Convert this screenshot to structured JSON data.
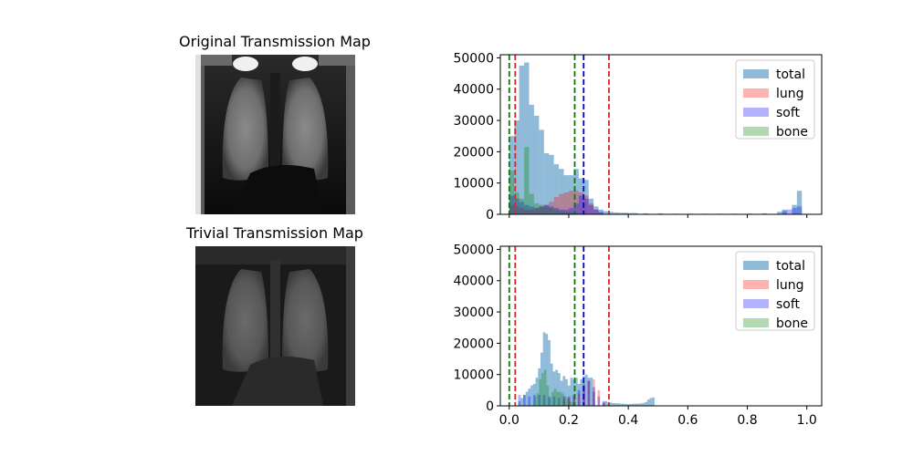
{
  "images": [
    {
      "title": "Original Transmission Map"
    },
    {
      "title": "Trivial Transmission Map"
    }
  ],
  "colors": {
    "total": "#1f77b4",
    "lung": "#ff0000",
    "soft": "#0000ff",
    "bone": "#008000",
    "vline_red": "#d62728",
    "vline_blue": "#0000cc",
    "vline_green": "#008000"
  },
  "chart_data": [
    {
      "type": "bar",
      "title": "",
      "xlabel": "",
      "ylabel": "",
      "xlim": [
        -0.03,
        1.05
      ],
      "ylim": [
        0,
        51000
      ],
      "yticks": [
        0,
        10000,
        20000,
        30000,
        40000,
        50000
      ],
      "xticks": [
        0.0,
        0.2,
        0.4,
        0.6,
        0.8,
        1.0
      ],
      "show_xtick_labels": false,
      "legend": {
        "position": "top-right",
        "entries": [
          "total",
          "lung",
          "soft",
          "bone"
        ]
      },
      "vlines": [
        {
          "x": 0.0,
          "color": "bone"
        },
        {
          "x": 0.02,
          "color": "lung"
        },
        {
          "x": 0.22,
          "color": "bone"
        },
        {
          "x": 0.25,
          "color": "soft"
        },
        {
          "x": 0.335,
          "color": "lung"
        }
      ],
      "bin_width": 0.01667,
      "series": [
        {
          "name": "total",
          "bins": [
            [
              0.0,
              25000
            ],
            [
              0.0167,
              30000
            ],
            [
              0.0333,
              47500
            ],
            [
              0.05,
              48500
            ],
            [
              0.0667,
              35000
            ],
            [
              0.0833,
              31500
            ],
            [
              0.1,
              27000
            ],
            [
              0.1167,
              19500
            ],
            [
              0.1333,
              19000
            ],
            [
              0.15,
              16000
            ],
            [
              0.1667,
              14500
            ],
            [
              0.1833,
              12500
            ],
            [
              0.2,
              12500
            ],
            [
              0.2167,
              14500
            ],
            [
              0.2333,
              11500
            ],
            [
              0.25,
              11000
            ],
            [
              0.2667,
              5000
            ],
            [
              0.2833,
              2500
            ],
            [
              0.3,
              1500
            ],
            [
              0.3167,
              1000
            ],
            [
              0.3333,
              800
            ],
            [
              0.35,
              600
            ],
            [
              0.3667,
              500
            ],
            [
              0.3833,
              500
            ],
            [
              0.4,
              400
            ],
            [
              0.4167,
              400
            ],
            [
              0.45,
              300
            ],
            [
              0.5,
              300
            ],
            [
              0.55,
              200
            ],
            [
              0.6,
              200
            ],
            [
              0.65,
              200
            ],
            [
              0.7,
              200
            ],
            [
              0.75,
              200
            ],
            [
              0.8,
              200
            ],
            [
              0.85,
              300
            ],
            [
              0.9,
              800
            ],
            [
              0.9167,
              1500
            ],
            [
              0.95,
              3000
            ],
            [
              0.9667,
              7500
            ]
          ]
        },
        {
          "name": "lung",
          "bins": [
            [
              0.0,
              3000
            ],
            [
              0.0167,
              2500
            ],
            [
              0.0333,
              2000
            ],
            [
              0.05,
              1500
            ],
            [
              0.0667,
              1500
            ],
            [
              0.0833,
              2000
            ],
            [
              0.1,
              2500
            ],
            [
              0.1167,
              3000
            ],
            [
              0.1333,
              4000
            ],
            [
              0.15,
              5500
            ],
            [
              0.1667,
              6500
            ],
            [
              0.1833,
              7000
            ],
            [
              0.2,
              7500
            ],
            [
              0.2167,
              7500
            ],
            [
              0.2333,
              7000
            ],
            [
              0.25,
              6000
            ],
            [
              0.2667,
              3500
            ],
            [
              0.2833,
              1500
            ],
            [
              0.3,
              500
            ]
          ]
        },
        {
          "name": "soft",
          "bins": [
            [
              0.0,
              6000
            ],
            [
              0.0167,
              5000
            ],
            [
              0.0333,
              4000
            ],
            [
              0.05,
              3000
            ],
            [
              0.0667,
              2500
            ],
            [
              0.0833,
              2000
            ],
            [
              0.1,
              2500
            ],
            [
              0.1167,
              3000
            ],
            [
              0.1333,
              2500
            ],
            [
              0.15,
              2000
            ],
            [
              0.1667,
              1500
            ],
            [
              0.1833,
              1500
            ],
            [
              0.2,
              2000
            ],
            [
              0.2167,
              3500
            ],
            [
              0.2333,
              6000
            ],
            [
              0.25,
              5000
            ],
            [
              0.2667,
              3000
            ],
            [
              0.2833,
              1500
            ],
            [
              0.3,
              800
            ],
            [
              0.9167,
              1000
            ],
            [
              0.9333,
              1500
            ],
            [
              0.95,
              2000
            ],
            [
              0.9667,
              2500
            ]
          ]
        },
        {
          "name": "bone",
          "bins": [
            [
              0.0,
              14000
            ],
            [
              0.0167,
              7000
            ],
            [
              0.0333,
              5000
            ],
            [
              0.05,
              21500
            ],
            [
              0.0667,
              6500
            ],
            [
              0.0833,
              3500
            ],
            [
              0.1,
              3000
            ],
            [
              0.1167,
              2500
            ],
            [
              0.1333,
              2000
            ],
            [
              0.15,
              1500
            ],
            [
              0.1667,
              1000
            ],
            [
              0.1833,
              800
            ],
            [
              0.2,
              700
            ],
            [
              0.2167,
              500
            ]
          ]
        }
      ]
    },
    {
      "type": "bar",
      "title": "",
      "xlabel": "",
      "ylabel": "",
      "xlim": [
        -0.03,
        1.05
      ],
      "ylim": [
        0,
        51000
      ],
      "yticks": [
        0,
        10000,
        20000,
        30000,
        40000,
        50000
      ],
      "xticks": [
        0.0,
        0.2,
        0.4,
        0.6,
        0.8,
        1.0
      ],
      "show_xtick_labels": true,
      "legend": {
        "position": "top-right",
        "entries": [
          "total",
          "lung",
          "soft",
          "bone"
        ]
      },
      "vlines": [
        {
          "x": 0.0,
          "color": "bone"
        },
        {
          "x": 0.02,
          "color": "lung"
        },
        {
          "x": 0.22,
          "color": "bone"
        },
        {
          "x": 0.25,
          "color": "soft"
        },
        {
          "x": 0.335,
          "color": "lung"
        }
      ],
      "bin_width": 0.0083,
      "series": [
        {
          "name": "total",
          "bins": [
            [
              0.03,
              1500
            ],
            [
              0.0383,
              2500
            ],
            [
              0.0467,
              3500
            ],
            [
              0.055,
              4500
            ],
            [
              0.0633,
              5500
            ],
            [
              0.0717,
              6500
            ],
            [
              0.08,
              7000
            ],
            [
              0.0883,
              9000
            ],
            [
              0.0967,
              12000
            ],
            [
              0.105,
              17000
            ],
            [
              0.1133,
              23500
            ],
            [
              0.1217,
              23000
            ],
            [
              0.13,
              21000
            ],
            [
              0.1383,
              13500
            ],
            [
              0.1467,
              11000
            ],
            [
              0.155,
              11500
            ],
            [
              0.1633,
              10500
            ],
            [
              0.1717,
              8000
            ],
            [
              0.18,
              9500
            ],
            [
              0.1883,
              8500
            ],
            [
              0.1967,
              6500
            ],
            [
              0.205,
              9000
            ],
            [
              0.2133,
              8500
            ],
            [
              0.2217,
              9000
            ],
            [
              0.23,
              7000
            ],
            [
              0.2383,
              8500
            ],
            [
              0.2467,
              9500
            ],
            [
              0.255,
              10000
            ],
            [
              0.2633,
              9000
            ],
            [
              0.2717,
              9000
            ],
            [
              0.28,
              4500
            ],
            [
              0.3133,
              1500
            ],
            [
              0.3217,
              1500
            ],
            [
              0.33,
              1000
            ],
            [
              0.3383,
              1000
            ],
            [
              0.3467,
              900
            ],
            [
              0.355,
              800
            ],
            [
              0.3633,
              800
            ],
            [
              0.3717,
              700
            ],
            [
              0.38,
              700
            ],
            [
              0.3883,
              600
            ],
            [
              0.3967,
              600
            ],
            [
              0.405,
              600
            ],
            [
              0.4133,
              700
            ],
            [
              0.4217,
              700
            ],
            [
              0.43,
              700
            ],
            [
              0.4383,
              800
            ],
            [
              0.4467,
              900
            ],
            [
              0.455,
              1200
            ],
            [
              0.4633,
              2000
            ],
            [
              0.4717,
              2500
            ],
            [
              0.48,
              2700
            ]
          ]
        },
        {
          "name": "lung",
          "bins": [
            [
              0.18,
              2000
            ],
            [
              0.1967,
              2500
            ],
            [
              0.2133,
              3000
            ],
            [
              0.23,
              4000
            ],
            [
              0.2467,
              6000
            ],
            [
              0.2633,
              8000
            ],
            [
              0.28,
              8500
            ],
            [
              0.2967,
              5000
            ],
            [
              0.3133,
              1000
            ]
          ]
        },
        {
          "name": "soft",
          "bins": [
            [
              0.03,
              3500
            ],
            [
              0.0467,
              3500
            ],
            [
              0.0633,
              3000
            ],
            [
              0.08,
              3500
            ],
            [
              0.0967,
              3500
            ],
            [
              0.1133,
              3500
            ],
            [
              0.13,
              3000
            ],
            [
              0.1467,
              3000
            ],
            [
              0.1633,
              2500
            ],
            [
              0.18,
              3000
            ],
            [
              0.1967,
              3000
            ],
            [
              0.2133,
              3500
            ],
            [
              0.23,
              5000
            ],
            [
              0.2467,
              7000
            ],
            [
              0.2633,
              8000
            ],
            [
              0.28,
              6000
            ],
            [
              0.2967,
              3000
            ],
            [
              0.3133,
              1000
            ]
          ]
        },
        {
          "name": "bone",
          "bins": [
            [
              0.0833,
              3000
            ],
            [
              0.0917,
              4000
            ],
            [
              0.1,
              8500
            ],
            [
              0.1083,
              10500
            ],
            [
              0.1167,
              11500
            ],
            [
              0.125,
              6500
            ],
            [
              0.1333,
              2500
            ],
            [
              0.1417,
              4500
            ],
            [
              0.15,
              5500
            ],
            [
              0.1583,
              4500
            ],
            [
              0.1667,
              4500
            ],
            [
              0.175,
              4000
            ],
            [
              0.1833,
              3000
            ],
            [
              0.1917,
              2500
            ],
            [
              0.2,
              1500
            ],
            [
              0.2083,
              1000
            ]
          ]
        }
      ]
    }
  ]
}
